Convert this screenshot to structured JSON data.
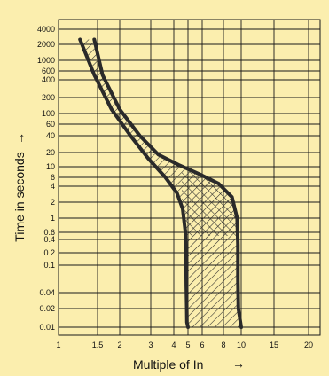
{
  "chart_data": {
    "type": "area",
    "xlabel": "Multiple of In",
    "ylabel": "Time in seconds",
    "x_scale": "log",
    "y_scale": "log",
    "xlim": [
      1,
      20
    ],
    "ylim": [
      0.008,
      5000
    ],
    "grid": true,
    "x_ticks": [
      1,
      1.5,
      2,
      3,
      4,
      5,
      6,
      8,
      10,
      15,
      20
    ],
    "x_tick_labels": [
      "1",
      "1.5",
      "2",
      "3",
      "4",
      "5",
      "6",
      "8",
      "10",
      "15",
      "20"
    ],
    "y_ticks": [
      4000,
      2000,
      1000,
      600,
      400,
      200,
      100,
      60,
      40,
      20,
      10,
      6,
      4,
      2,
      1,
      0.6,
      0.4,
      0.2,
      0.1,
      0.04,
      0.02,
      0.01
    ],
    "y_tick_labels": [
      "4000",
      "2000",
      "1000",
      "600",
      "400",
      "200",
      "100",
      "60",
      "40",
      "20",
      "10",
      "6",
      "4",
      "2",
      "1",
      "0.6",
      "0.4",
      "0.2",
      "0.1",
      "0.04",
      "0.02",
      "0.01"
    ],
    "series": [
      {
        "role": "lower-bound",
        "x": [
          1.25,
          1.45,
          1.8,
          2.3,
          2.9,
          3.6,
          4.2,
          4.6,
          4.8,
          4.85,
          4.87,
          4.9,
          4.92,
          5.0
        ],
        "y": [
          2500,
          500,
          120,
          40,
          15,
          6,
          3,
          1.5,
          0.6,
          0.2,
          0.05,
          0.02,
          0.012,
          0.01
        ]
      },
      {
        "role": "upper-bound",
        "x": [
          1.45,
          1.6,
          2.0,
          2.6,
          3.3,
          4.3,
          5.8,
          7.5,
          8.9,
          9.5,
          9.6,
          9.6,
          9.65,
          10.0
        ],
        "y": [
          2500,
          500,
          120,
          40,
          18,
          11,
          7,
          4.5,
          2.5,
          1.0,
          0.3,
          0.06,
          0.02,
          0.01
        ]
      }
    ],
    "colors": {
      "background": "#fbeeae",
      "grid": "#1a1a1a",
      "curve": "#2a2a2a"
    }
  },
  "axes": {
    "xlabel": "Multiple of In",
    "ylabel": "Time in seconds",
    "x_arrow": "→",
    "y_arrow": "→"
  }
}
